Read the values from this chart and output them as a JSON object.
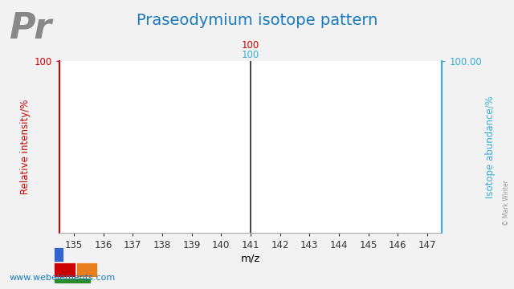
{
  "title": "Praseodymium isotope pattern",
  "element_symbol": "Pr",
  "mz_values": [
    141
  ],
  "intensities": [
    100
  ],
  "abundance_values": [
    100.0
  ],
  "xlim": [
    134.5,
    147.5
  ],
  "ylim": [
    0,
    100
  ],
  "xticks": [
    135,
    136,
    137,
    138,
    139,
    140,
    141,
    142,
    143,
    144,
    145,
    146,
    147
  ],
  "xlabel": "m/z",
  "ylabel_left": "Relative intensity/%",
  "ylabel_right": "Isotope abundance/%",
  "title_color": "#1a7abf",
  "left_axis_color": "#cc0000",
  "right_axis_color": "#3aabdb",
  "bar_color": "#222222",
  "background_color": "#f2f2f2",
  "plot_bg_color": "#ffffff",
  "watermark": "© Mark Winter",
  "website": "www.webelements.com",
  "annotation_red": "100",
  "annotation_blue": "100",
  "right_ytick_label": "100.00",
  "left_ytick_label": "100",
  "element_symbol_color": "#888888"
}
